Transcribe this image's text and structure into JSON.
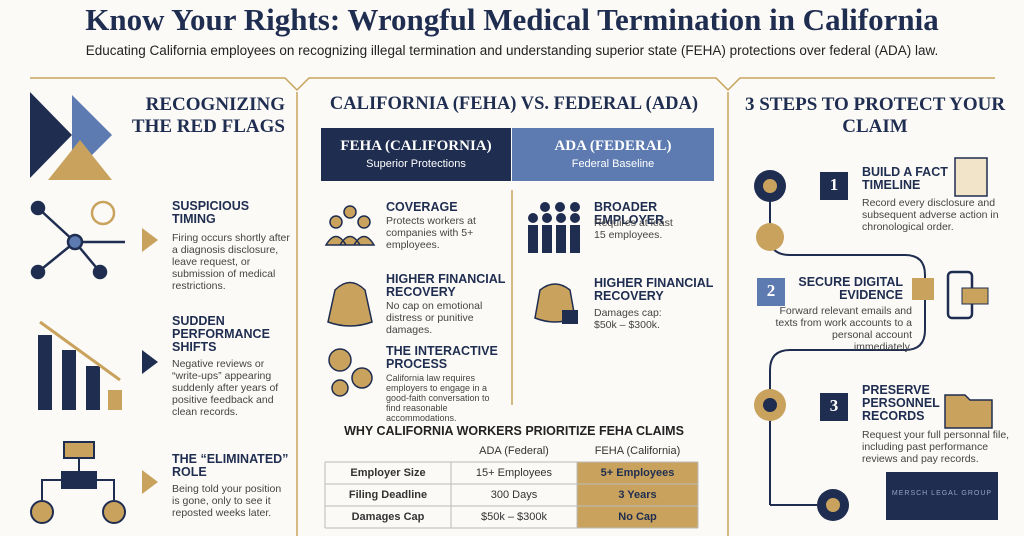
{
  "header": {
    "title": "Know Your Rights: Wrongful Medical Termination in California",
    "subtitle": "Educating California employees on recognizing illegal termination and understanding superior state (FEHA) protections over federal (ADA) law."
  },
  "left": {
    "heading": "RECOGNIZING THE RED FLAGS",
    "items": [
      {
        "title": "SUSPICIOUS TIMING",
        "text": "Firing occurs shortly after a diagnosis disclosure, leave request, or submission of medical restrictions."
      },
      {
        "title": "SUDDEN PERFORMANCE SHIFTS",
        "text": "Negative reviews or “write-ups” appearing suddenly after years of positive feedback and clean records."
      },
      {
        "title": "THE “ELIMINATED” ROLE",
        "text": "Being told your position is gone, only to see it reposted weeks later."
      }
    ]
  },
  "middle": {
    "heading": "CALIFORNIA (FEHA) VS. FEDERAL (ADA)",
    "feha": {
      "title": "FEHA (CALIFORNIA)",
      "subtitle": "Superior Protections",
      "items": [
        {
          "title": "COVERAGE",
          "text": "Protects workers at companies with 5+ employees."
        },
        {
          "title": "HIGHER FINANCIAL RECOVERY",
          "text": "No cap on emotional distress or punitive damages."
        },
        {
          "title": "THE INTERACTIVE PROCESS",
          "text": "California law requires employers to engage in a good-faith conversation to find reasonable accommodations."
        }
      ]
    },
    "ada": {
      "title": "ADA (FEDERAL)",
      "subtitle": "Federal Baseline",
      "items": [
        {
          "title": "BROADER EMPLOYER",
          "text": "Requires at least 15 employees."
        },
        {
          "title": "HIGHER FINANCIAL RECOVERY",
          "text": "Damages cap: $50k – $300k."
        }
      ]
    },
    "table": {
      "title": "WHY CALIFORNIA WORKERS PRIORITIZE FEHA CLAIMS",
      "columns": [
        "ADA (Federal)",
        "FEHA (California)"
      ],
      "rows": [
        [
          "Employer Size",
          "15+ Employees",
          "5+ Employees"
        ],
        [
          "Filing Deadline",
          "300 Days",
          "3 Years"
        ],
        [
          "Damages Cap",
          "$50k – $300k",
          "No Cap"
        ]
      ]
    }
  },
  "right": {
    "heading": "3 STEPS TO PROTECT YOUR CLAIM",
    "steps": [
      {
        "number": 1,
        "title": "BUILD A FACT TIMELINE",
        "text": "Record every disclosure and subsequent adverse action in chronological order."
      },
      {
        "number": 2,
        "title": "SECURE DIGITAL EVIDENCE",
        "text": "Forward relevant emails and texts from work accounts to a personal account immediately."
      },
      {
        "number": 3,
        "title": "PRESERVE PERSONNEL RECORDS",
        "text": "Request your full personnal file, including past performance reviews and pay records."
      }
    ],
    "logo": "MERSCH LEGAL GROUP"
  }
}
